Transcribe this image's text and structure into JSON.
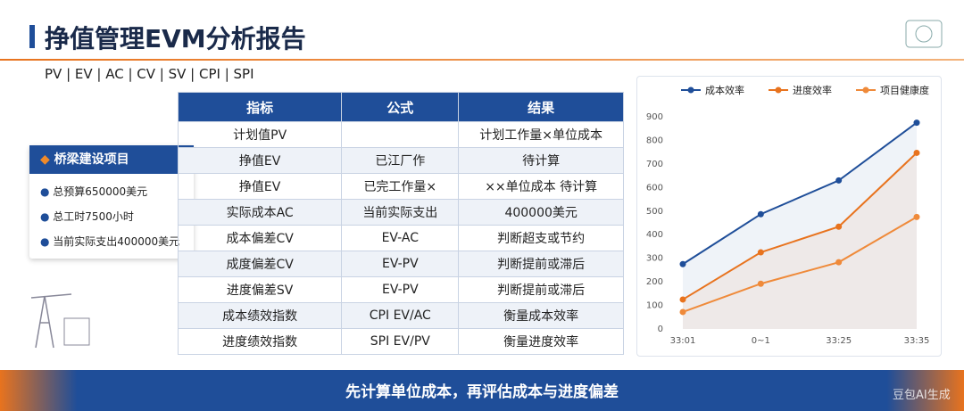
{
  "header": {
    "title": "挣值管理EVM分析报告",
    "subtitle": "PV | EV | AC | CV | SV | CPI | SPI"
  },
  "card": {
    "title": "桥梁建设项目",
    "items": [
      "总预算650000美元",
      "总工时7500小时",
      "当前实际支出400000美元"
    ]
  },
  "table": {
    "header": [
      "指标",
      "公式",
      "结果"
    ],
    "rows": [
      [
        "计划值PV",
        "",
        "计划工作量×单位成本"
      ],
      [
        "挣值EV",
        "已江厂作",
        "待计算"
      ],
      [
        "挣值EV",
        "已完工作量×",
        "××单位成本  待计算"
      ],
      [
        "实际成本AC",
        "当前实际支出",
        "400000美元"
      ],
      [
        "成本偏差CV",
        "EV-AC",
        "判断超支或节约"
      ],
      [
        "成度偏差CV",
        "EV-PV",
        "判断提前或滞后"
      ],
      [
        "进度偏差SV",
        "EV-PV",
        "判断提前或滞后"
      ],
      [
        "成本绩效指数",
        "CPI EV/AC",
        "衡量成本效率"
      ],
      [
        "进度绩效指数",
        "SPI EV/PV",
        "衡量进度效率"
      ]
    ]
  },
  "chart_data": {
    "type": "line",
    "categories": [
      "33:01",
      "0~1",
      "33:25",
      "33:35"
    ],
    "series": [
      {
        "name": "成本效率",
        "color": "#1f4e99",
        "values": [
          275,
          487,
          630,
          875
        ]
      },
      {
        "name": "进度效率",
        "color": "#e8731e",
        "values": [
          125,
          325,
          434,
          747
        ]
      },
      {
        "name": "项目健康度",
        "color": "#ef8a3a",
        "values": [
          72,
          192,
          283,
          475
        ]
      }
    ],
    "ylim": [
      0,
      900
    ],
    "yticks": [
      0,
      100,
      200,
      300,
      400,
      500,
      600,
      700,
      800,
      900
    ],
    "grid": false,
    "legend": "top"
  },
  "footer": {
    "banner": "先计算单位成本，再评估成本与进度偏差",
    "watermark": "豆包AI生成"
  }
}
